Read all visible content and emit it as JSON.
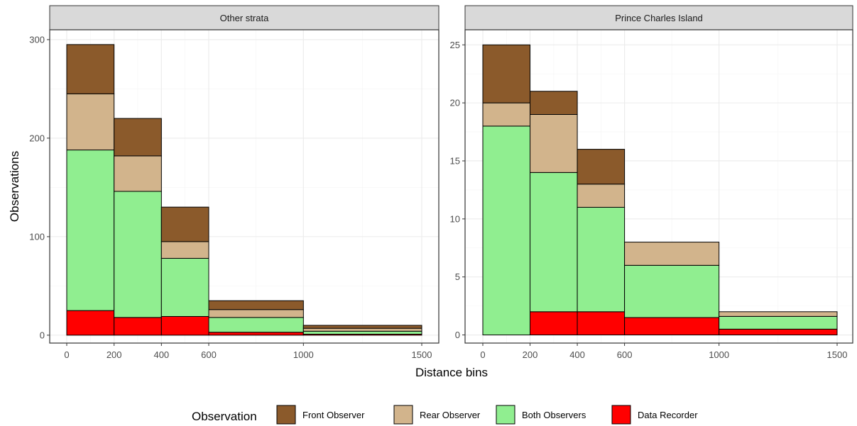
{
  "chart_data": {
    "type": "bar",
    "subtype": "stacked-histogram",
    "xlabel": "Distance bins",
    "ylabel": "Observations",
    "x_ticks": [
      0,
      200,
      400,
      600,
      1000,
      1500
    ],
    "bins": [
      [
        0,
        200
      ],
      [
        200,
        400
      ],
      [
        400,
        600
      ],
      [
        600,
        1000
      ],
      [
        1000,
        1500
      ]
    ],
    "stack_order": [
      "Data Recorder",
      "Both Observers",
      "Rear Observer",
      "Front Observer"
    ],
    "grid": true,
    "legend": {
      "title": "Observation",
      "position": "bottom",
      "entries": [
        {
          "name": "Front Observer",
          "color": "#8B5A2B"
        },
        {
          "name": "Rear Observer",
          "color": "#D2B48C"
        },
        {
          "name": "Both Observers",
          "color": "#90EE90"
        },
        {
          "name": "Data Recorder",
          "color": "#FF0000"
        }
      ]
    },
    "panels": [
      {
        "title": "Other strata",
        "ylim": [
          -8,
          310
        ],
        "y_ticks": [
          0,
          100,
          200,
          300
        ],
        "series": [
          {
            "name": "Data Recorder",
            "values": [
              25,
              18,
              19,
              3,
              1
            ]
          },
          {
            "name": "Both Observers",
            "values": [
              163,
              128,
              59,
              15,
              3
            ]
          },
          {
            "name": "Rear Observer",
            "values": [
              57,
              36,
              17,
              8,
              3
            ]
          },
          {
            "name": "Front Observer",
            "values": [
              50,
              38,
              35,
              9,
              3
            ]
          }
        ]
      },
      {
        "title": "Prince Charles Island",
        "ylim": [
          -0.7,
          26.3
        ],
        "y_ticks": [
          0,
          5,
          10,
          15,
          20,
          25
        ],
        "series": [
          {
            "name": "Data Recorder",
            "values": [
              0,
              2,
              2,
              1.5,
              0.5
            ]
          },
          {
            "name": "Both Observers",
            "values": [
              18,
              12,
              9,
              4.5,
              1.1
            ]
          },
          {
            "name": "Rear Observer",
            "values": [
              2,
              5,
              2,
              2,
              0.4
            ]
          },
          {
            "name": "Front Observer",
            "values": [
              5,
              2,
              3,
              0,
              0
            ]
          }
        ]
      }
    ]
  }
}
